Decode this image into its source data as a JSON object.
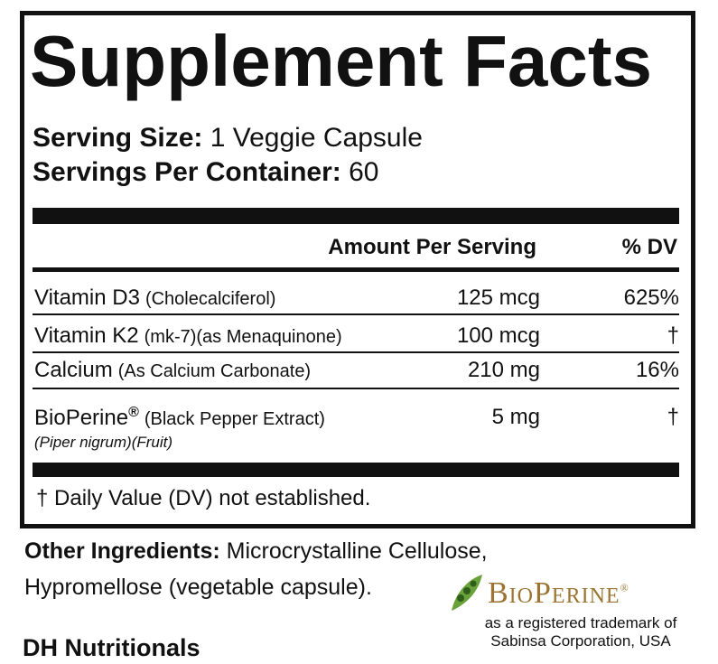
{
  "title": "Supplement Facts",
  "serving_size": {
    "label": "Serving Size:",
    "value": "1 Veggie Capsule"
  },
  "servings_per_container": {
    "label": "Servings Per Container:",
    "value": 60
  },
  "table": {
    "header": [
      "Amount Per Serving",
      "% DV"
    ],
    "rows": [
      {
        "name": "Vitamin D3",
        "detail": "(Cholecalciferol)",
        "amount": "125 mcg",
        "dv": "625%"
      },
      {
        "name": "Vitamin K2",
        "detail": "(mk-7)(as Menaquinone)",
        "amount": "100 mcg",
        "dv": "†"
      },
      {
        "name": "Calcium",
        "detail": "(As Calcium Carbonate)",
        "amount": "210 mg",
        "dv": "16%"
      },
      {
        "name": "BioPerine",
        "mark": "®",
        "detail": "(Black Pepper Extract)",
        "sub": "(Piper nigrum)(Fruit)",
        "amount": "5 mg",
        "dv": "†"
      }
    ]
  },
  "footnote": "† Daily Value (DV) not established.",
  "other_ingredients": {
    "label": "Other Ingredients:",
    "lines": [
      "Microcrystalline Cellulose,",
      "Hypromellose (vegetable capsule)."
    ]
  },
  "logo": {
    "text": "BioPerine",
    "mark": "®"
  },
  "trademark_note": [
    "as a registered trademark of",
    "Sabinsa Corporation, USA"
  ],
  "brand": "DH Nutritionals"
}
